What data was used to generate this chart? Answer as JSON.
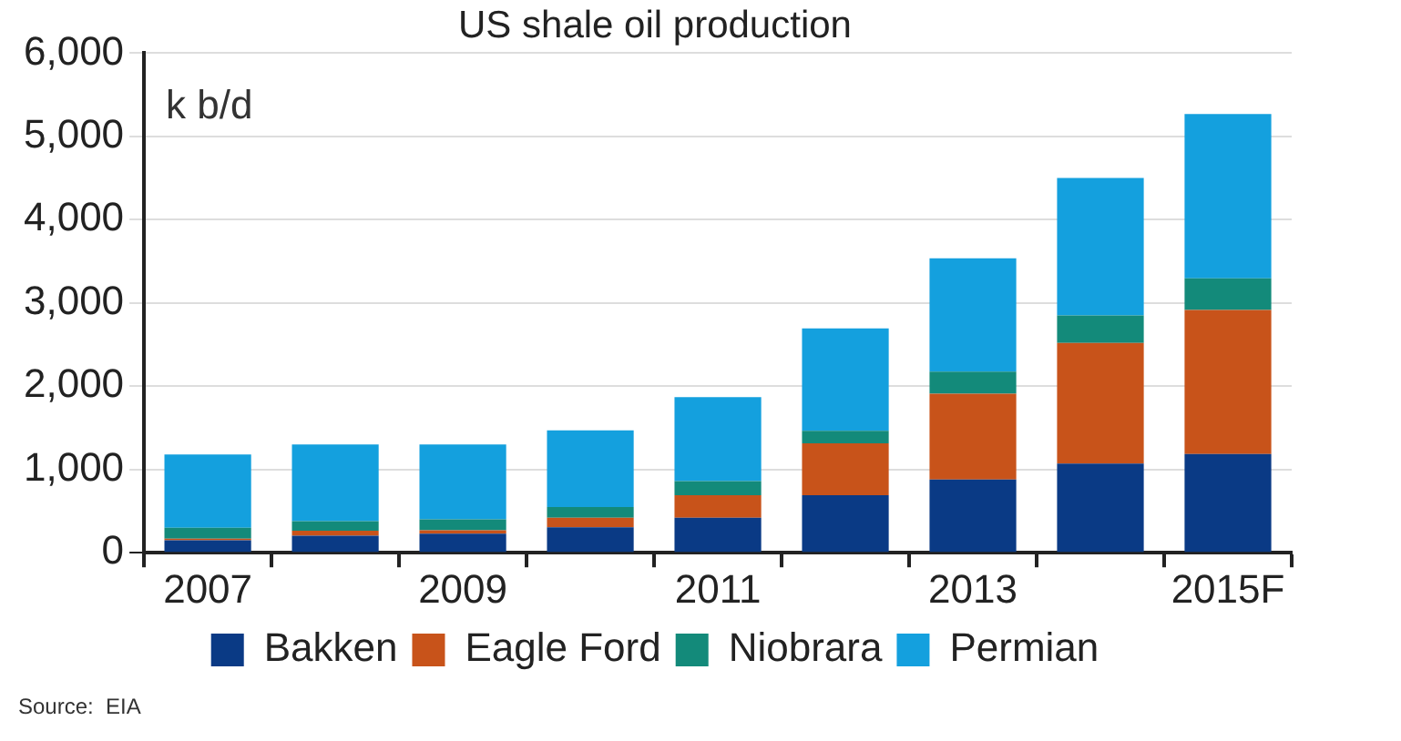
{
  "chart_data": {
    "type": "bar",
    "title": "US shale oil production",
    "stacked": true,
    "categories": [
      "2007",
      null,
      "2009",
      null,
      "2011",
      null,
      "2013",
      null,
      "2015F"
    ],
    "series": [
      {
        "name": "Bakken",
        "color": "#0a3a85",
        "values": [
          150,
          205,
          230,
          305,
          420,
          690,
          880,
          1070,
          1185
        ]
      },
      {
        "name": "Eagle Ford",
        "color": "#c8531a",
        "values": [
          20,
          60,
          40,
          115,
          270,
          625,
          1030,
          1450,
          1730
        ]
      },
      {
        "name": "Niobrara",
        "color": "#138a7a",
        "values": [
          130,
          115,
          130,
          130,
          170,
          150,
          265,
          330,
          380
        ]
      },
      {
        "name": "Permian",
        "color": "#14a0de",
        "values": [
          880,
          920,
          900,
          920,
          1010,
          1230,
          1360,
          1650,
          1975
        ]
      }
    ],
    "ylim": [
      0,
      6000
    ],
    "yticks": [
      {
        "value": 0,
        "label": "0"
      },
      {
        "value": 1000,
        "label": "1,000"
      },
      {
        "value": 2000,
        "label": "2,000"
      },
      {
        "value": 3000,
        "label": "3,000"
      },
      {
        "value": 4000,
        "label": "4,000"
      },
      {
        "value": 5000,
        "label": "5,000"
      },
      {
        "value": 6000,
        "label": "6,000"
      }
    ],
    "grid": "y",
    "legend": "bottom",
    "annotations": [
      "k b/d",
      "Source:  EIA"
    ]
  }
}
